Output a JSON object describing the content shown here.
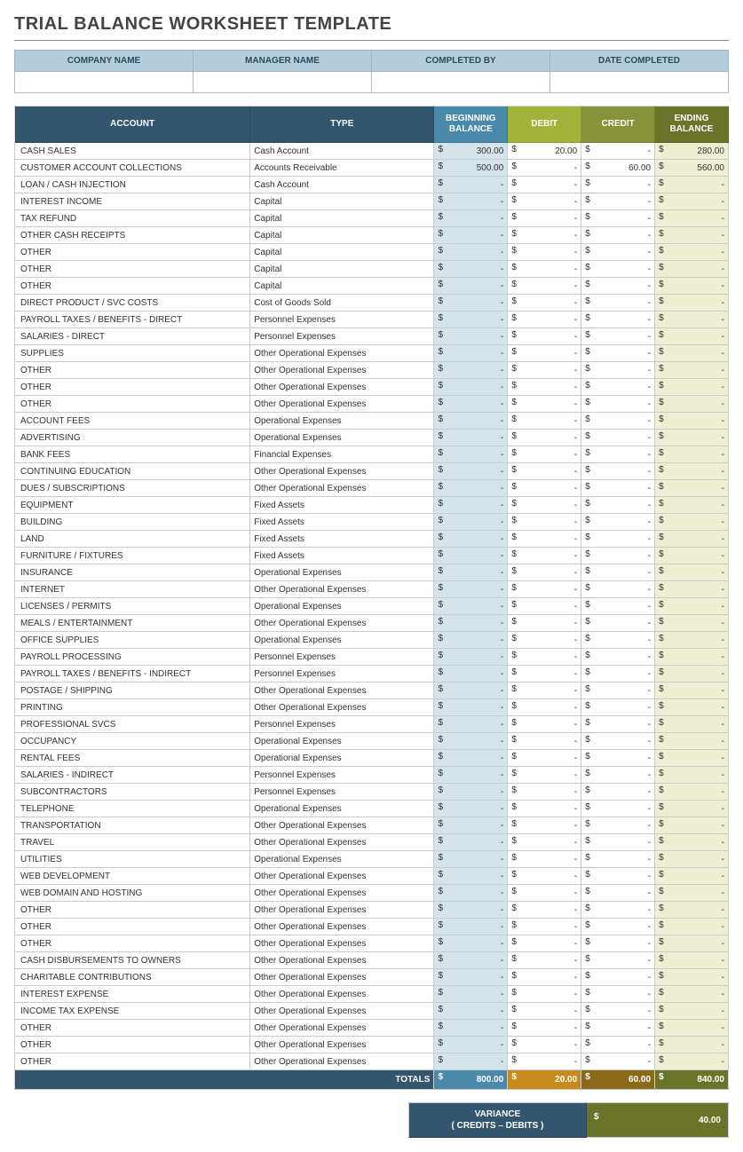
{
  "title": "TRIAL BALANCE WORKSHEET TEMPLATE",
  "colors": {
    "info_header_bg": "#b3cddb",
    "hdr_dark": "#31566e",
    "hdr_begin": "#4b89ab",
    "hdr_debit": "#a3b23b",
    "hdr_credit": "#88923a",
    "hdr_ending": "#6b732b",
    "col_begin_bg": "#d5e3ea",
    "col_ending_bg": "#edeed2",
    "tot_label_bg": "#31566e",
    "tot_begin_bg": "#4b89ab",
    "tot_debit_bg": "#c78a1f",
    "tot_credit_bg": "#8a6a1a",
    "tot_ending_bg": "#6b732b",
    "var_label_bg": "#31566e",
    "var_val_bg": "#6b732b"
  },
  "info_headers": [
    "COMPANY NAME",
    "MANAGER NAME",
    "COMPLETED BY",
    "DATE COMPLETED"
  ],
  "columns": {
    "account": "ACCOUNT",
    "type": "TYPE",
    "beginning": "BEGINNING BALANCE",
    "debit": "DEBIT",
    "credit": "CREDIT",
    "ending": "ENDING BALANCE"
  },
  "rows": [
    {
      "account": "CASH SALES",
      "type": "Cash Account",
      "begin": "300.00",
      "debit": "20.00",
      "credit": "-",
      "ending": "280.00"
    },
    {
      "account": "CUSTOMER ACCOUNT COLLECTIONS",
      "type": "Accounts Receivable",
      "begin": "500.00",
      "debit": "-",
      "credit": "60.00",
      "ending": "560.00"
    },
    {
      "account": "LOAN / CASH INJECTION",
      "type": "Cash Account",
      "begin": "-",
      "debit": "-",
      "credit": "-",
      "ending": "-"
    },
    {
      "account": "INTEREST INCOME",
      "type": "Capital",
      "begin": "-",
      "debit": "-",
      "credit": "-",
      "ending": "-"
    },
    {
      "account": "TAX REFUND",
      "type": "Capital",
      "begin": "-",
      "debit": "-",
      "credit": "-",
      "ending": "-"
    },
    {
      "account": "OTHER CASH RECEIPTS",
      "type": "Capital",
      "begin": "-",
      "debit": "-",
      "credit": "-",
      "ending": "-"
    },
    {
      "account": "OTHER",
      "type": "Capital",
      "begin": "-",
      "debit": "-",
      "credit": "-",
      "ending": "-"
    },
    {
      "account": "OTHER",
      "type": "Capital",
      "begin": "-",
      "debit": "-",
      "credit": "-",
      "ending": "-"
    },
    {
      "account": "OTHER",
      "type": "Capital",
      "begin": "-",
      "debit": "-",
      "credit": "-",
      "ending": "-"
    },
    {
      "account": "DIRECT PRODUCT / SVC COSTS",
      "type": "Cost of Goods Sold",
      "begin": "-",
      "debit": "-",
      "credit": "-",
      "ending": "-"
    },
    {
      "account": "PAYROLL TAXES / BENEFITS - DIRECT",
      "type": "Personnel Expenses",
      "begin": "-",
      "debit": "-",
      "credit": "-",
      "ending": "-"
    },
    {
      "account": "SALARIES - DIRECT",
      "type": "Personnel Expenses",
      "begin": "-",
      "debit": "-",
      "credit": "-",
      "ending": "-"
    },
    {
      "account": "SUPPLIES",
      "type": "Other Operational Expenses",
      "begin": "-",
      "debit": "-",
      "credit": "-",
      "ending": "-"
    },
    {
      "account": "OTHER",
      "type": "Other Operational Expenses",
      "begin": "-",
      "debit": "-",
      "credit": "-",
      "ending": "-"
    },
    {
      "account": "OTHER",
      "type": "Other Operational Expenses",
      "begin": "-",
      "debit": "-",
      "credit": "-",
      "ending": "-"
    },
    {
      "account": "OTHER",
      "type": "Other Operational Expenses",
      "begin": "-",
      "debit": "-",
      "credit": "-",
      "ending": "-"
    },
    {
      "account": "ACCOUNT FEES",
      "type": "Operational Expenses",
      "begin": "-",
      "debit": "-",
      "credit": "-",
      "ending": "-"
    },
    {
      "account": "ADVERTISING",
      "type": "Operational Expenses",
      "begin": "-",
      "debit": "-",
      "credit": "-",
      "ending": "-"
    },
    {
      "account": "BANK FEES",
      "type": "Financial Expenses",
      "begin": "-",
      "debit": "-",
      "credit": "-",
      "ending": "-"
    },
    {
      "account": "CONTINUING EDUCATION",
      "type": "Other Operational Expenses",
      "begin": "-",
      "debit": "-",
      "credit": "-",
      "ending": "-"
    },
    {
      "account": "DUES / SUBSCRIPTIONS",
      "type": "Other Operational Expenses",
      "begin": "-",
      "debit": "-",
      "credit": "-",
      "ending": "-"
    },
    {
      "account": "EQUIPMENT",
      "type": "Fixed Assets",
      "begin": "-",
      "debit": "-",
      "credit": "-",
      "ending": "-"
    },
    {
      "account": "BUILDING",
      "type": "Fixed Assets",
      "begin": "-",
      "debit": "-",
      "credit": "-",
      "ending": "-"
    },
    {
      "account": "LAND",
      "type": "Fixed Assets",
      "begin": "-",
      "debit": "-",
      "credit": "-",
      "ending": "-"
    },
    {
      "account": "FURNITURE / FIXTURES",
      "type": "Fixed Assets",
      "begin": "-",
      "debit": "-",
      "credit": "-",
      "ending": "-"
    },
    {
      "account": "INSURANCE",
      "type": "Operational Expenses",
      "begin": "-",
      "debit": "-",
      "credit": "-",
      "ending": "-"
    },
    {
      "account": "INTERNET",
      "type": "Other Operational Expenses",
      "begin": "-",
      "debit": "-",
      "credit": "-",
      "ending": "-"
    },
    {
      "account": "LICENSES / PERMITS",
      "type": "Operational Expenses",
      "begin": "-",
      "debit": "-",
      "credit": "-",
      "ending": "-"
    },
    {
      "account": "MEALS / ENTERTAINMENT",
      "type": "Other Operational Expenses",
      "begin": "-",
      "debit": "-",
      "credit": "-",
      "ending": "-"
    },
    {
      "account": "OFFICE SUPPLIES",
      "type": "Operational Expenses",
      "begin": "-",
      "debit": "-",
      "credit": "-",
      "ending": "-"
    },
    {
      "account": "PAYROLL PROCESSING",
      "type": "Personnel Expenses",
      "begin": "-",
      "debit": "-",
      "credit": "-",
      "ending": "-"
    },
    {
      "account": "PAYROLL TAXES / BENEFITS - INDIRECT",
      "type": "Personnel Expenses",
      "begin": "-",
      "debit": "-",
      "credit": "-",
      "ending": "-"
    },
    {
      "account": "POSTAGE / SHIPPING",
      "type": "Other Operational Expenses",
      "begin": "-",
      "debit": "-",
      "credit": "-",
      "ending": "-"
    },
    {
      "account": "PRINTING",
      "type": "Other Operational Expenses",
      "begin": "-",
      "debit": "-",
      "credit": "-",
      "ending": "-"
    },
    {
      "account": "PROFESSIONAL SVCS",
      "type": "Personnel Expenses",
      "begin": "-",
      "debit": "-",
      "credit": "-",
      "ending": "-"
    },
    {
      "account": "OCCUPANCY",
      "type": "Operational Expenses",
      "begin": "-",
      "debit": "-",
      "credit": "-",
      "ending": "-"
    },
    {
      "account": "RENTAL FEES",
      "type": "Operational Expenses",
      "begin": "-",
      "debit": "-",
      "credit": "-",
      "ending": "-"
    },
    {
      "account": "SALARIES - INDIRECT",
      "type": "Personnel Expenses",
      "begin": "-",
      "debit": "-",
      "credit": "-",
      "ending": "-"
    },
    {
      "account": "SUBCONTRACTORS",
      "type": "Personnel Expenses",
      "begin": "-",
      "debit": "-",
      "credit": "-",
      "ending": "-"
    },
    {
      "account": "TELEPHONE",
      "type": "Operational Expenses",
      "begin": "-",
      "debit": "-",
      "credit": "-",
      "ending": "-"
    },
    {
      "account": "TRANSPORTATION",
      "type": "Other Operational Expenses",
      "begin": "-",
      "debit": "-",
      "credit": "-",
      "ending": "-"
    },
    {
      "account": "TRAVEL",
      "type": "Other Operational Expenses",
      "begin": "-",
      "debit": "-",
      "credit": "-",
      "ending": "-"
    },
    {
      "account": "UTILITIES",
      "type": "Operational Expenses",
      "begin": "-",
      "debit": "-",
      "credit": "-",
      "ending": "-"
    },
    {
      "account": "WEB DEVELOPMENT",
      "type": "Other Operational Expenses",
      "begin": "-",
      "debit": "-",
      "credit": "-",
      "ending": "-"
    },
    {
      "account": "WEB DOMAIN AND HOSTING",
      "type": "Other Operational Expenses",
      "begin": "-",
      "debit": "-",
      "credit": "-",
      "ending": "-"
    },
    {
      "account": "OTHER",
      "type": "Other Operational Expenses",
      "begin": "-",
      "debit": "-",
      "credit": "-",
      "ending": "-"
    },
    {
      "account": "OTHER",
      "type": "Other Operational Expenses",
      "begin": "-",
      "debit": "-",
      "credit": "-",
      "ending": "-"
    },
    {
      "account": "OTHER",
      "type": "Other Operational Expenses",
      "begin": "-",
      "debit": "-",
      "credit": "-",
      "ending": "-"
    },
    {
      "account": "CASH DISBURSEMENTS TO OWNERS",
      "type": "Other Operational Expenses",
      "begin": "-",
      "debit": "-",
      "credit": "-",
      "ending": "-"
    },
    {
      "account": "CHARITABLE CONTRIBUTIONS",
      "type": "Other Operational Expenses",
      "begin": "-",
      "debit": "-",
      "credit": "-",
      "ending": "-"
    },
    {
      "account": "INTEREST EXPENSE",
      "type": "Other Operational Expenses",
      "begin": "-",
      "debit": "-",
      "credit": "-",
      "ending": "-"
    },
    {
      "account": "INCOME TAX EXPENSE",
      "type": "Other Operational Expenses",
      "begin": "-",
      "debit": "-",
      "credit": "-",
      "ending": "-"
    },
    {
      "account": "OTHER",
      "type": "Other Operational Expenses",
      "begin": "-",
      "debit": "-",
      "credit": "-",
      "ending": "-"
    },
    {
      "account": "OTHER",
      "type": "Other Operational Expenses",
      "begin": "-",
      "debit": "-",
      "credit": "-",
      "ending": "-"
    },
    {
      "account": "OTHER",
      "type": "Other Operational Expenses",
      "begin": "-",
      "debit": "-",
      "credit": "-",
      "ending": "-"
    }
  ],
  "totals": {
    "label": "TOTALS",
    "begin": "800.00",
    "debit": "20.00",
    "credit": "60.00",
    "ending": "840.00"
  },
  "variance": {
    "label_line1": "VARIANCE",
    "label_line2": "( CREDITS – DEBITS )",
    "value": "40.00"
  }
}
